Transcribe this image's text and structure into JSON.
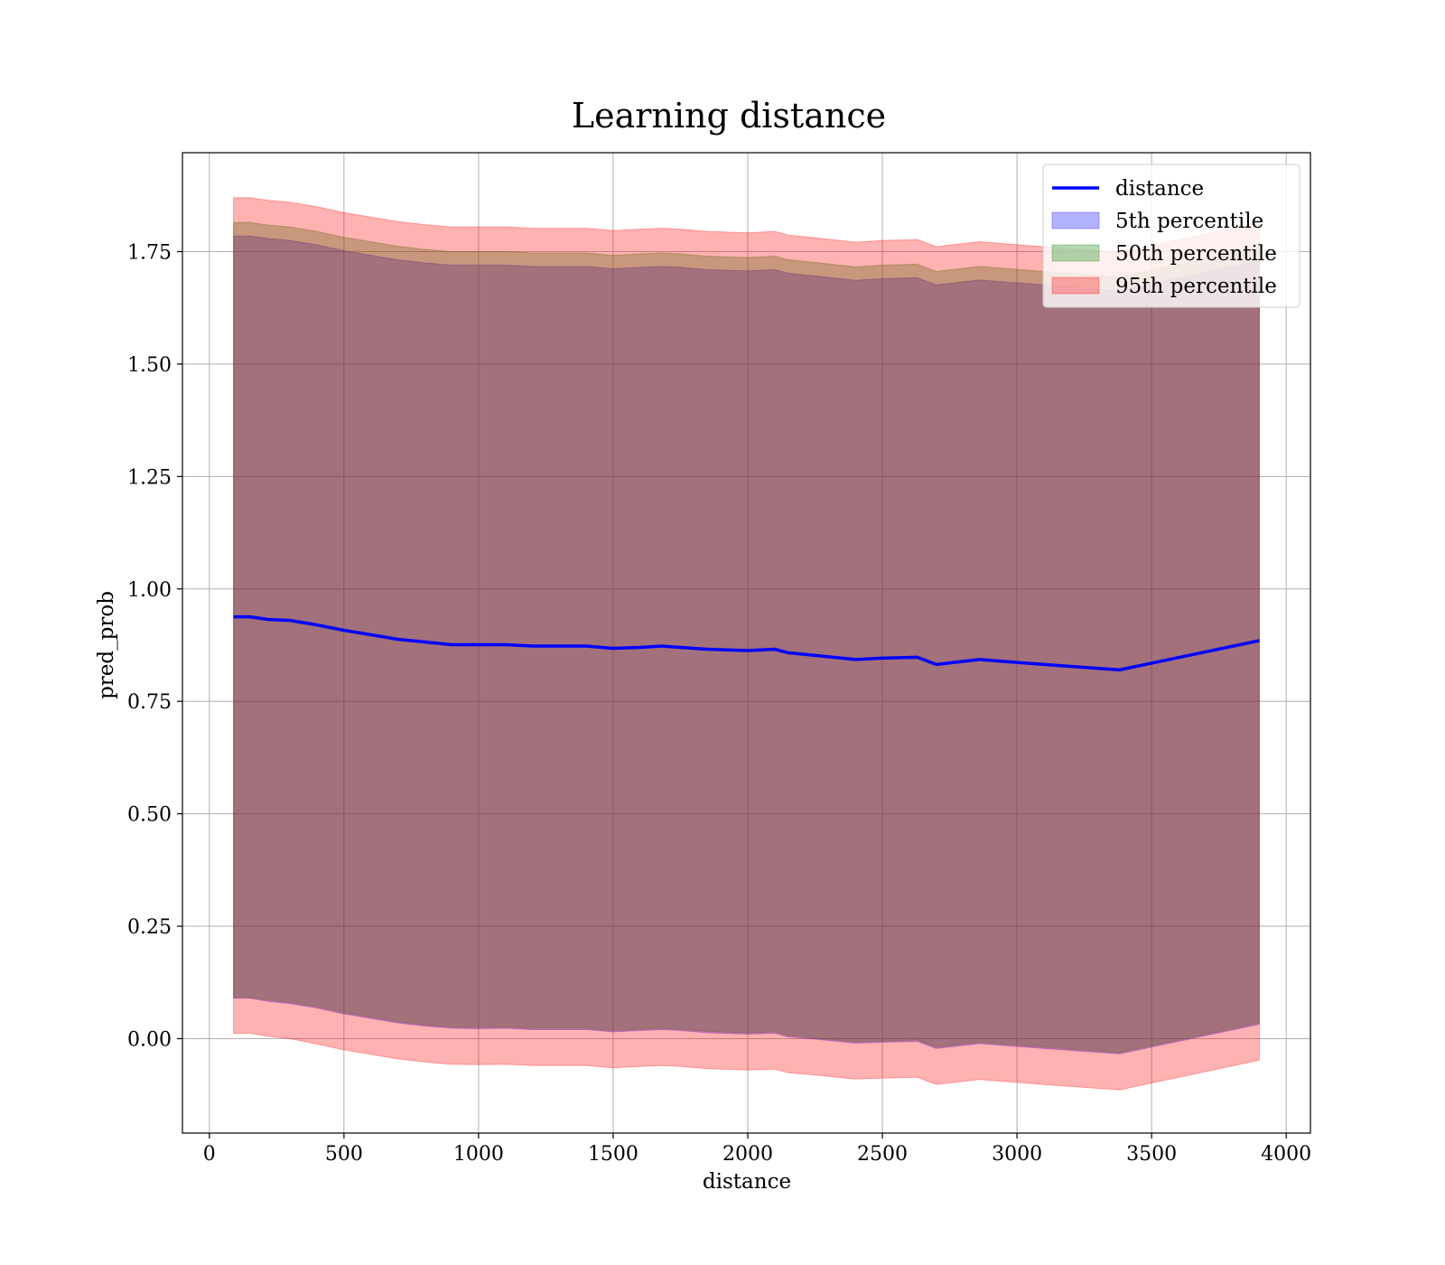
{
  "chart_data": {
    "type": "line",
    "title": "Learning distance",
    "xlabel": "distance",
    "ylabel": "pred_prob",
    "xlim": [
      -100,
      4090
    ],
    "ylim": [
      -0.21,
      1.97
    ],
    "xticks": [
      0,
      500,
      1000,
      1500,
      2000,
      2500,
      3000,
      3500,
      4000
    ],
    "xtick_labels": [
      "0",
      "500",
      "1000",
      "1500",
      "2000",
      "2500",
      "3000",
      "3500",
      "4000"
    ],
    "yticks": [
      0.0,
      0.25,
      0.5,
      0.75,
      1.0,
      1.25,
      1.5,
      1.75
    ],
    "ytick_labels": [
      "0.00",
      "0.25",
      "0.50",
      "0.75",
      "1.00",
      "1.25",
      "1.50",
      "1.75"
    ],
    "grid": true,
    "legend_position": "top-right",
    "x": [
      90,
      150,
      220,
      300,
      400,
      500,
      600,
      700,
      800,
      900,
      1000,
      1100,
      1200,
      1300,
      1400,
      1500,
      1600,
      1680,
      1750,
      1850,
      2000,
      2100,
      2150,
      2250,
      2400,
      2500,
      2630,
      2700,
      2860,
      3100,
      3380,
      3900
    ],
    "series": [
      {
        "name": "distance",
        "kind": "line",
        "color": "#0000ff",
        "values": [
          0.938,
          0.938,
          0.932,
          0.93,
          0.92,
          0.908,
          0.898,
          0.888,
          0.882,
          0.876,
          0.876,
          0.876,
          0.873,
          0.873,
          0.873,
          0.868,
          0.87,
          0.873,
          0.87,
          0.866,
          0.863,
          0.866,
          0.858,
          0.852,
          0.843,
          0.846,
          0.848,
          0.832,
          0.843,
          0.832,
          0.82,
          0.885
        ]
      },
      {
        "name": "5th percentile",
        "kind": "band",
        "color": "#0000ff",
        "lower": [
          0.09,
          0.09,
          0.083,
          0.078,
          0.068,
          0.055,
          0.045,
          0.035,
          0.028,
          0.023,
          0.022,
          0.023,
          0.02,
          0.02,
          0.02,
          0.015,
          0.018,
          0.02,
          0.018,
          0.013,
          0.01,
          0.012,
          0.004,
          -0.001,
          -0.01,
          -0.008,
          -0.006,
          -0.022,
          -0.011,
          -0.022,
          -0.034,
          0.032
        ],
        "upper": [
          1.785,
          1.785,
          1.779,
          1.775,
          1.765,
          1.752,
          1.742,
          1.732,
          1.725,
          1.72,
          1.72,
          1.72,
          1.717,
          1.717,
          1.717,
          1.712,
          1.715,
          1.717,
          1.715,
          1.71,
          1.707,
          1.71,
          1.702,
          1.696,
          1.686,
          1.69,
          1.692,
          1.676,
          1.687,
          1.676,
          1.663,
          1.73
        ]
      },
      {
        "name": "50th percentile",
        "kind": "band",
        "color": "#008000",
        "lower": [
          0.092,
          0.092,
          0.086,
          0.081,
          0.071,
          0.058,
          0.048,
          0.038,
          0.031,
          0.026,
          0.025,
          0.026,
          0.023,
          0.023,
          0.023,
          0.018,
          0.021,
          0.023,
          0.021,
          0.016,
          0.013,
          0.015,
          0.007,
          0.002,
          -0.007,
          -0.005,
          -0.003,
          -0.019,
          -0.008,
          -0.019,
          -0.031,
          0.035
        ],
        "upper": [
          1.815,
          1.815,
          1.809,
          1.805,
          1.795,
          1.782,
          1.772,
          1.762,
          1.755,
          1.75,
          1.75,
          1.75,
          1.747,
          1.747,
          1.747,
          1.742,
          1.745,
          1.747,
          1.745,
          1.74,
          1.737,
          1.74,
          1.732,
          1.726,
          1.716,
          1.72,
          1.722,
          1.706,
          1.717,
          1.706,
          1.693,
          1.76
        ]
      },
      {
        "name": "95th percentile",
        "kind": "band",
        "color": "#ff0000",
        "lower": [
          0.012,
          0.012,
          0.005,
          0.0,
          -0.012,
          -0.025,
          -0.035,
          -0.045,
          -0.052,
          -0.057,
          -0.058,
          -0.057,
          -0.06,
          -0.06,
          -0.06,
          -0.065,
          -0.062,
          -0.06,
          -0.062,
          -0.067,
          -0.07,
          -0.068,
          -0.076,
          -0.081,
          -0.09,
          -0.088,
          -0.086,
          -0.102,
          -0.091,
          -0.102,
          -0.114,
          -0.048
        ],
        "upper": [
          1.87,
          1.87,
          1.864,
          1.86,
          1.85,
          1.837,
          1.827,
          1.817,
          1.81,
          1.805,
          1.805,
          1.805,
          1.802,
          1.802,
          1.802,
          1.797,
          1.8,
          1.802,
          1.8,
          1.795,
          1.792,
          1.795,
          1.787,
          1.781,
          1.771,
          1.775,
          1.777,
          1.761,
          1.772,
          1.761,
          1.748,
          1.815
        ]
      }
    ]
  }
}
